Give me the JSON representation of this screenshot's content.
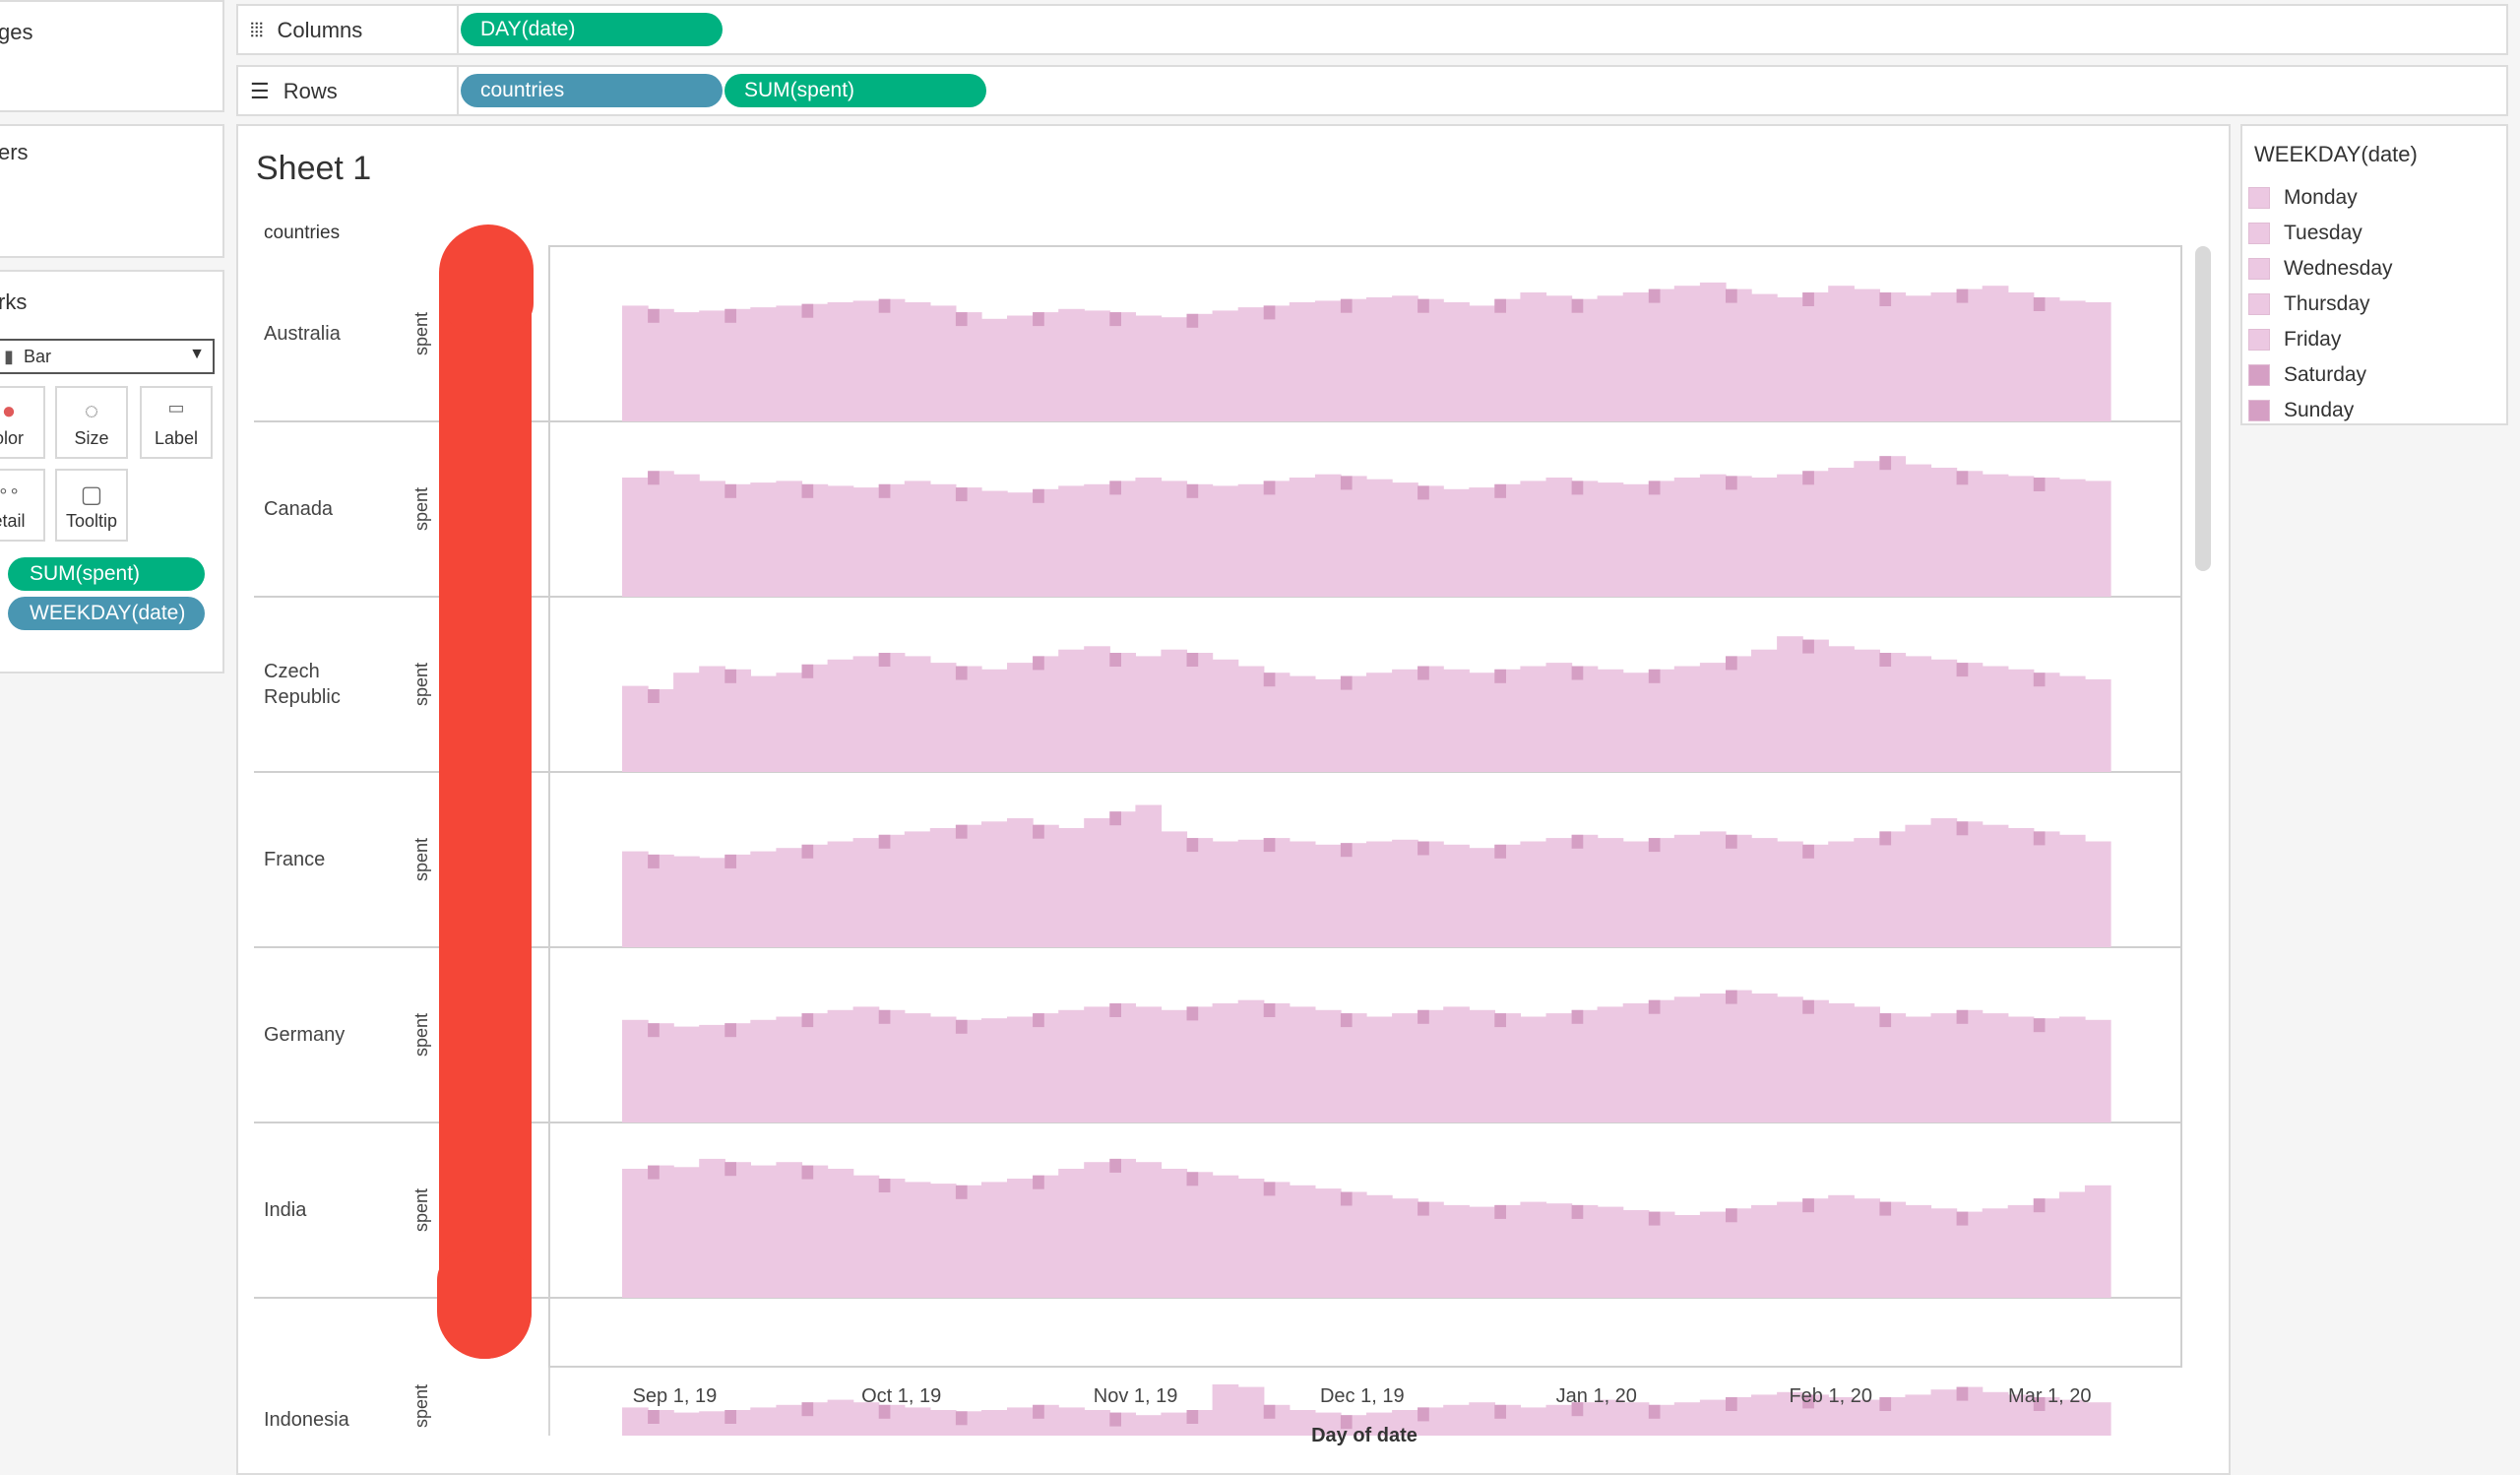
{
  "left_panel": {
    "pages_title": "ges",
    "filters_title": "ers",
    "marks_title": "rks",
    "mark_type": "Bar",
    "buttons": [
      {
        "label": "olor",
        "icon": "color-icon"
      },
      {
        "label": "Size",
        "icon": "size-icon"
      },
      {
        "label": "Label",
        "icon": "label-icon"
      },
      {
        "label": "etail",
        "icon": "detail-icon"
      },
      {
        "label": "Tooltip",
        "icon": "tooltip-icon"
      }
    ],
    "mark_fields": [
      "SUM(spent)",
      "WEEKDAY(date)"
    ]
  },
  "shelves": {
    "columns_label": "Columns",
    "rows_label": "Rows",
    "columns_pills": [
      "DAY(date)"
    ],
    "rows_pills": [
      "countries",
      "SUM(spent)"
    ]
  },
  "sheet": {
    "title": "Sheet 1",
    "row_header": "countries",
    "measure_label": "spent",
    "x_axis_title": "Day of date",
    "x_ticks": [
      "Sep 1, 19",
      "Oct 1, 19",
      "Nov 1, 19",
      "Dec 1, 19",
      "Jan 1, 20",
      "Feb 1, 20",
      "Mar 1, 20"
    ]
  },
  "legend": {
    "title": "WEEKDAY(date)",
    "items": [
      "Monday",
      "Tuesday",
      "Wednesday",
      "Thursday",
      "Friday",
      "Saturday",
      "Sunday"
    ]
  },
  "colors": {
    "bar_light": "#ecc8e2",
    "bar_dark": "#d59fc4",
    "pill_green": "#00b180",
    "pill_blue": "#4996b2",
    "redaction": "#f44637"
  },
  "chart_data": {
    "type": "bar",
    "x_start": "2019-08-24",
    "x_end": "2020-03-08",
    "series": [
      {
        "name": "Australia",
        "values": [
          70,
          68,
          66,
          67,
          68,
          69,
          70,
          71,
          72,
          73,
          74,
          72,
          70,
          66,
          62,
          64,
          66,
          68,
          67,
          66,
          64,
          63,
          65,
          67,
          69,
          70,
          72,
          73,
          74,
          75,
          76,
          74,
          72,
          70,
          74,
          78,
          76,
          74,
          76,
          78,
          80,
          82,
          84,
          80,
          77,
          75,
          78,
          82,
          80,
          78,
          76,
          78,
          80,
          82,
          78,
          75,
          73,
          72
        ]
      },
      {
        "name": "Canada",
        "values": [
          72,
          76,
          74,
          70,
          68,
          69,
          70,
          68,
          67,
          66,
          68,
          70,
          68,
          66,
          64,
          63,
          65,
          67,
          68,
          70,
          72,
          70,
          68,
          67,
          68,
          70,
          72,
          74,
          73,
          71,
          69,
          67,
          65,
          66,
          68,
          70,
          72,
          70,
          69,
          68,
          70,
          72,
          74,
          73,
          72,
          74,
          76,
          78,
          82,
          85,
          80,
          78,
          76,
          74,
          73,
          72,
          71,
          70
        ]
      },
      {
        "name": "Czech Republic",
        "values": [
          52,
          50,
          60,
          64,
          62,
          58,
          60,
          65,
          68,
          70,
          72,
          70,
          66,
          64,
          62,
          66,
          70,
          74,
          76,
          72,
          70,
          74,
          72,
          68,
          64,
          60,
          58,
          56,
          58,
          60,
          62,
          64,
          62,
          60,
          62,
          64,
          66,
          64,
          62,
          60,
          62,
          64,
          66,
          70,
          74,
          82,
          80,
          76,
          74,
          72,
          70,
          68,
          66,
          64,
          62,
          60,
          58,
          56
        ]
      },
      {
        "name": "France",
        "values": [
          58,
          56,
          55,
          54,
          56,
          58,
          60,
          62,
          64,
          66,
          68,
          70,
          72,
          74,
          76,
          78,
          74,
          72,
          78,
          82,
          86,
          70,
          66,
          64,
          65,
          66,
          64,
          62,
          63,
          64,
          65,
          64,
          62,
          60,
          62,
          64,
          66,
          68,
          66,
          64,
          66,
          68,
          70,
          68,
          66,
          64,
          62,
          64,
          66,
          70,
          74,
          78,
          76,
          74,
          72,
          70,
          68,
          64
        ]
      },
      {
        "name": "Germany",
        "values": [
          62,
          60,
          58,
          59,
          60,
          62,
          64,
          66,
          68,
          70,
          68,
          66,
          64,
          62,
          63,
          64,
          66,
          68,
          70,
          72,
          70,
          68,
          70,
          72,
          74,
          72,
          70,
          68,
          66,
          64,
          66,
          68,
          70,
          68,
          66,
          64,
          66,
          68,
          70,
          72,
          74,
          76,
          78,
          80,
          78,
          76,
          74,
          72,
          70,
          66,
          64,
          66,
          68,
          66,
          64,
          63,
          64,
          62
        ]
      },
      {
        "name": "India",
        "values": [
          78,
          80,
          79,
          84,
          82,
          80,
          82,
          80,
          78,
          74,
          72,
          70,
          69,
          68,
          70,
          72,
          74,
          78,
          82,
          84,
          82,
          78,
          76,
          74,
          72,
          70,
          68,
          66,
          64,
          62,
          60,
          58,
          56,
          55,
          56,
          58,
          57,
          56,
          55,
          53,
          52,
          50,
          52,
          54,
          56,
          58,
          60,
          62,
          60,
          58,
          56,
          54,
          52,
          54,
          56,
          60,
          64,
          68
        ]
      },
      {
        "name": "Indonesia",
        "values": [
          22,
          20,
          18,
          19,
          20,
          22,
          24,
          26,
          28,
          26,
          24,
          22,
          20,
          19,
          20,
          22,
          24,
          22,
          20,
          18,
          16,
          18,
          20,
          40,
          38,
          24,
          20,
          18,
          16,
          18,
          20,
          22,
          24,
          26,
          24,
          22,
          24,
          26,
          28,
          26,
          24,
          26,
          28,
          30,
          32,
          34,
          32,
          30,
          28,
          30,
          32,
          36,
          38,
          34,
          32,
          30,
          28,
          26
        ]
      }
    ],
    "ylim": [
      0,
      100
    ],
    "legend_position": "right"
  }
}
